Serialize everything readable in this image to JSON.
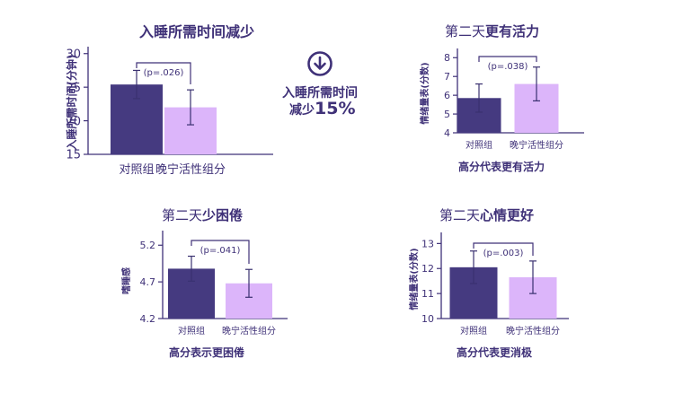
{
  "colors": {
    "control": "#453a80",
    "treatment": "#dcb5fa",
    "text": "#3f3178",
    "axis": "#3f3178"
  },
  "annotation": {
    "icon": "down-arrow-circle-icon",
    "line1": "入睡所需时间",
    "line2": "减少",
    "value": "15%"
  },
  "chart_data": [
    {
      "type": "bar",
      "title": {
        "normal": "",
        "bold": "入睡所需时间减少"
      },
      "ylabel": "入睡所需时间(分钟)",
      "footer": "",
      "categories": [
        "对照组",
        "晚宁活性组分"
      ],
      "values": [
        25.4,
        22.0
      ],
      "errors": [
        2.1,
        2.6
      ],
      "ylim": [
        15,
        30.5
      ],
      "yticks": [
        15,
        20,
        25,
        30
      ],
      "pvalue": "(p=.026)"
    },
    {
      "type": "bar",
      "title": {
        "normal": "第二天",
        "bold": "更有活力"
      },
      "ylabel": "情绪量表(分数)",
      "footer": "高分代表更有活力",
      "categories": [
        "对照组",
        "晚宁活性组分"
      ],
      "values": [
        5.85,
        6.6
      ],
      "errors": [
        0.75,
        0.9
      ],
      "ylim": [
        4,
        8.3
      ],
      "yticks": [
        4,
        5,
        6,
        7,
        8
      ],
      "pvalue": "(p=.038)"
    },
    {
      "type": "bar",
      "title": {
        "normal": "第二天",
        "bold": "少困倦"
      },
      "ylabel": "嗜睡感",
      "footer": "高分表示更困倦",
      "categories": [
        "对照组",
        "晚宁活性组分"
      ],
      "values": [
        4.88,
        4.68
      ],
      "errors": [
        0.17,
        0.19
      ],
      "ylim": [
        4.2,
        5.35
      ],
      "yticks": [
        4.2,
        4.7,
        5.2
      ],
      "pvalue": "(p=.041)"
    },
    {
      "type": "bar",
      "title": {
        "normal": "第二天",
        "bold": "心情更好"
      },
      "ylabel": "情绪量表(分数)",
      "footer": "高分代表更消极",
      "categories": [
        "对照组",
        "晚宁活性组分"
      ],
      "values": [
        12.05,
        11.65
      ],
      "errors": [
        0.65,
        0.65
      ],
      "ylim": [
        10,
        13.3
      ],
      "yticks": [
        10,
        11,
        12,
        13
      ],
      "pvalue": "(p=.003)"
    }
  ]
}
